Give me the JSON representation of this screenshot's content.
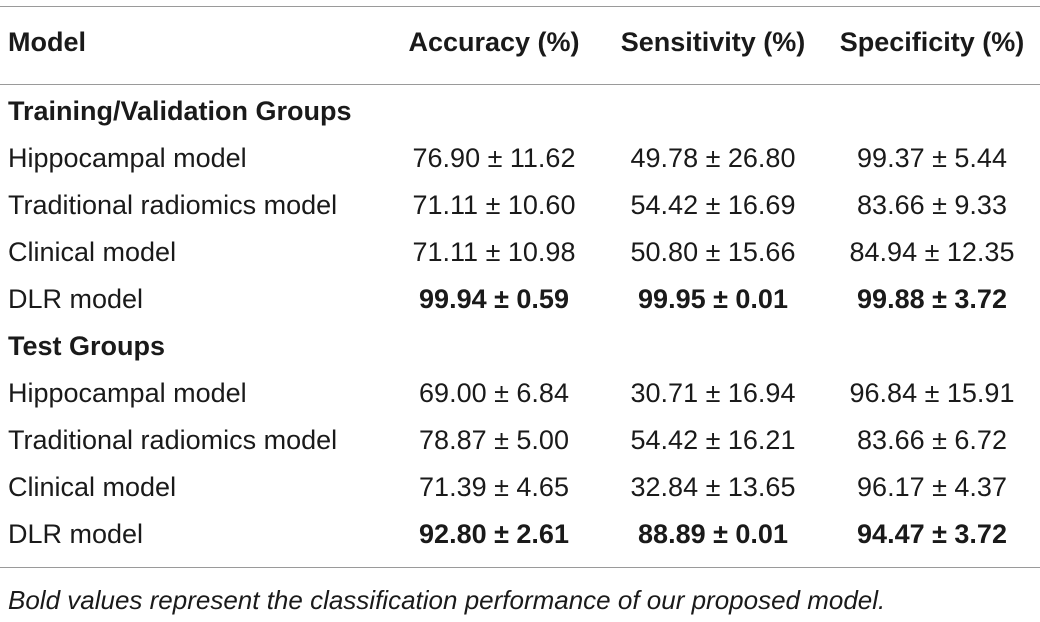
{
  "table": {
    "columns": [
      "Model",
      "Accuracy (%)",
      "Sensitivity (%)",
      "Specificity (%)"
    ],
    "groups": [
      {
        "title": "Training/Validation Groups",
        "rows": [
          {
            "model": "Hippocampal model",
            "accuracy": "76.90 ± 11.62",
            "sensitivity": "49.78 ± 26.80",
            "specificity": "99.37 ± 5.44",
            "bold": false
          },
          {
            "model": "Traditional radiomics model",
            "accuracy": "71.11 ± 10.60",
            "sensitivity": "54.42 ± 16.69",
            "specificity": "83.66 ± 9.33",
            "bold": false
          },
          {
            "model": "Clinical model",
            "accuracy": "71.11 ± 10.98",
            "sensitivity": "50.80 ± 15.66",
            "specificity": "84.94 ± 12.35",
            "bold": false
          },
          {
            "model": "DLR model",
            "accuracy": "99.94 ± 0.59",
            "sensitivity": "99.95 ± 0.01",
            "specificity": "99.88 ± 3.72",
            "bold": true
          }
        ]
      },
      {
        "title": "Test Groups",
        "rows": [
          {
            "model": "Hippocampal model",
            "accuracy": "69.00 ± 6.84",
            "sensitivity": "30.71 ± 16.94",
            "specificity": "96.84 ± 15.91",
            "bold": false
          },
          {
            "model": "Traditional radiomics model",
            "accuracy": "78.87 ± 5.00",
            "sensitivity": "54.42 ± 16.21",
            "specificity": "83.66 ± 6.72",
            "bold": false
          },
          {
            "model": "Clinical model",
            "accuracy": "71.39 ± 4.65",
            "sensitivity": "32.84 ± 13.65",
            "specificity": "96.17 ± 4.37",
            "bold": false
          },
          {
            "model": "DLR model",
            "accuracy": "92.80 ± 2.61",
            "sensitivity": "88.89 ± 0.01",
            "specificity": "94.47 ± 3.72",
            "bold": true
          }
        ]
      }
    ]
  },
  "footnote": "Bold values represent the classification performance of our proposed model."
}
